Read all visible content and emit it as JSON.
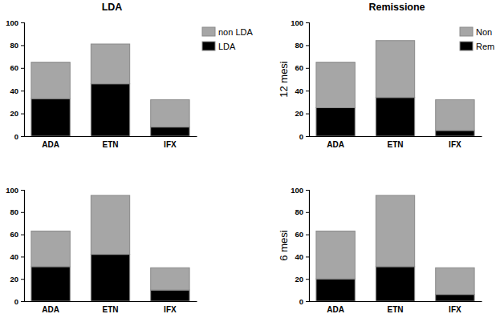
{
  "chart_data": [
    {
      "type": "bar",
      "stacked": true,
      "title": "LDA",
      "categories": [
        "ADA",
        "ETN",
        "IFX"
      ],
      "series": [
        {
          "name": "LDA",
          "color": "#000000",
          "values": [
            33,
            46,
            8
          ]
        },
        {
          "name": "non LDA",
          "color": "#a6a6a6",
          "values": [
            32,
            35,
            24
          ]
        }
      ],
      "ylim": [
        0,
        100
      ],
      "yticks": [
        0,
        20,
        40,
        60,
        80,
        100
      ],
      "grid": false,
      "legend": "top right"
    },
    {
      "type": "bar",
      "stacked": true,
      "title": "Remissione",
      "y_label": "12 mesi",
      "categories": [
        "ADA",
        "ETN",
        "IFX"
      ],
      "series": [
        {
          "name": "Rem",
          "color": "#000000",
          "values": [
            25,
            34,
            5
          ]
        },
        {
          "name": "Non",
          "color": "#a6a6a6",
          "values": [
            40,
            50,
            27
          ]
        }
      ],
      "ylim": [
        0,
        100
      ],
      "yticks": [
        0,
        20,
        40,
        60,
        80,
        100
      ],
      "grid": false,
      "legend": "top right"
    },
    {
      "type": "bar",
      "stacked": true,
      "categories": [
        "ADA",
        "ETN",
        "IFX"
      ],
      "series": [
        {
          "color": "#000000",
          "values": [
            31,
            42,
            10
          ]
        },
        {
          "color": "#a6a6a6",
          "values": [
            32,
            53,
            20
          ]
        }
      ],
      "ylim": [
        0,
        100
      ],
      "yticks": [
        0,
        20,
        40,
        60,
        80,
        100
      ],
      "grid": false
    },
    {
      "type": "bar",
      "stacked": true,
      "y_label": "6 mesi",
      "categories": [
        "ADA",
        "ETN",
        "IFX"
      ],
      "series": [
        {
          "color": "#000000",
          "values": [
            20,
            31,
            6
          ]
        },
        {
          "color": "#a6a6a6",
          "values": [
            43,
            64,
            24
          ]
        }
      ],
      "ylim": [
        0,
        100
      ],
      "yticks": [
        0,
        20,
        40,
        60,
        80,
        100
      ],
      "grid": false
    }
  ]
}
